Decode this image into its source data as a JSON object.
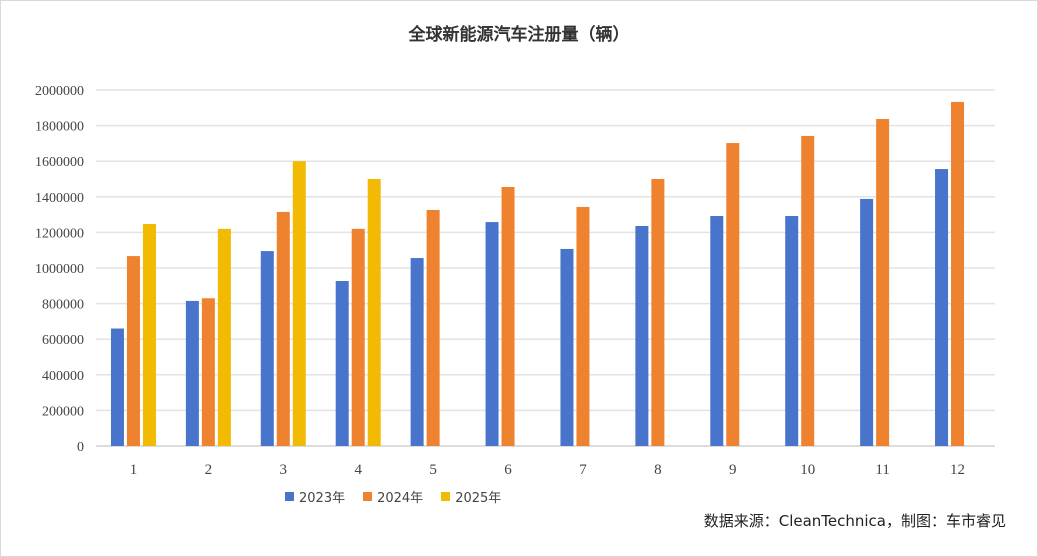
{
  "chart_data": {
    "type": "bar",
    "title": "全球新能源汽车注册量（辆）",
    "xlabel": "",
    "ylabel": "",
    "categories": [
      "1",
      "2",
      "3",
      "4",
      "5",
      "6",
      "7",
      "8",
      "9",
      "10",
      "11",
      "12"
    ],
    "ylim": [
      0,
      2000000
    ],
    "yticks": [
      "0",
      "200000",
      "400000",
      "600000",
      "800000",
      "1000000",
      "1200000",
      "1400000",
      "1600000",
      "1800000",
      "2000000"
    ],
    "grid": true,
    "legend_position": "bottom",
    "series": [
      {
        "name": "2023年",
        "color": "#4874CB",
        "values": [
          660000,
          815000,
          1095000,
          927000,
          1056000,
          1258000,
          1107000,
          1236000,
          1292000,
          1292000,
          1388000,
          1556000
        ]
      },
      {
        "name": "2024年",
        "color": "#EE822F",
        "values": [
          1067000,
          830000,
          1315000,
          1220000,
          1326000,
          1455000,
          1343000,
          1500000,
          1702000,
          1742000,
          1837000,
          1933000
        ]
      },
      {
        "name": "2025年",
        "color": "#F2BA02",
        "values": [
          1247000,
          1220000,
          1600000,
          1500000,
          null,
          null,
          null,
          null,
          null,
          null,
          null,
          null
        ]
      }
    ]
  },
  "source_note": "数据来源：CleanTechnica，制图：车市睿见"
}
